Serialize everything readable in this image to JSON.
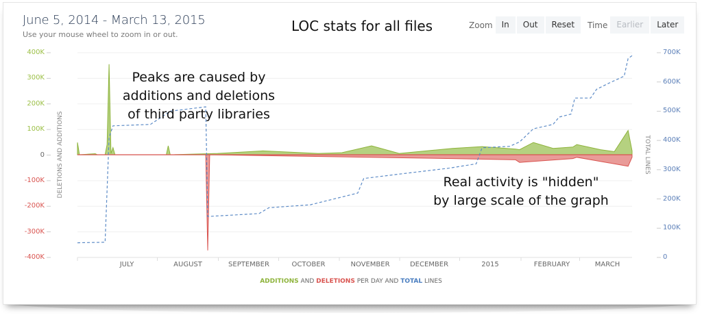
{
  "header": {
    "date_range": "June 5, 2014 - March 13, 2015",
    "hint": "Use your mouse wheel to zoom in or out.",
    "title": "LOC stats for all files"
  },
  "controls": {
    "zoom_label": "Zoom",
    "zoom_in": "In",
    "zoom_out": "Out",
    "zoom_reset": "Reset",
    "time_label": "Time",
    "time_earlier": "Earlier",
    "time_later": "Later"
  },
  "annotations": {
    "peaks_line1": "Peaks are caused by",
    "peaks_line2": "additions and deletions",
    "peaks_line3": "of third party libraries",
    "hidden_line1": "Real activity is \"hidden\"",
    "hidden_line2": "by large scale of the graph"
  },
  "legend": {
    "additions": "ADDITIONS",
    "and1": " AND ",
    "deletions": "DELETIONS",
    "per_day": " PER DAY AND ",
    "total": "TOTAL",
    "lines": " LINES"
  },
  "colors": {
    "additions": "#8db33a",
    "deletions": "#d9534f",
    "total": "#4a7ec0",
    "left_positive_ticks": "#9bbf45",
    "left_negative_ticks": "#d9534f",
    "right_ticks": "#5b7fb8"
  },
  "chart_data": {
    "type": "area",
    "title": "LOC stats for all files",
    "subtitle": "June 5, 2014 - March 13, 2015",
    "xlabel": "",
    "ylabel_left": "DELETIONS AND ADDITIONS",
    "ylabel_right": "TOTAL LINES",
    "x_ticks": [
      "JULY",
      "AUGUST",
      "SEPTEMBER",
      "OCTOBER",
      "NOVEMBER",
      "DECEMBER",
      "2015",
      "FEBRUARY",
      "MARCH"
    ],
    "y_left_ticks": [
      "400K",
      "300K",
      "200K",
      "100K",
      "0",
      "-100K",
      "-200K",
      "-300K",
      "-400K"
    ],
    "y_left_range": [
      -400000,
      400000
    ],
    "y_right_ticks": [
      "700K",
      "600K",
      "500K",
      "400K",
      "300K",
      "200K",
      "100K",
      "0"
    ],
    "y_right_range": [
      0,
      700000
    ],
    "grid": true,
    "legend_position": "bottom",
    "series": [
      {
        "name": "Additions",
        "axis": "left",
        "type": "area",
        "points": [
          {
            "date": "2014-06-05",
            "value": 48000
          },
          {
            "date": "2014-06-06",
            "value": 0
          },
          {
            "date": "2014-06-14",
            "value": 4000
          },
          {
            "date": "2014-06-15",
            "value": 0
          },
          {
            "date": "2014-06-19",
            "value": 0
          },
          {
            "date": "2014-06-20",
            "value": 40000
          },
          {
            "date": "2014-06-21",
            "value": 355000
          },
          {
            "date": "2014-06-22",
            "value": 5000
          },
          {
            "date": "2014-06-23",
            "value": 28000
          },
          {
            "date": "2014-06-24",
            "value": 0
          },
          {
            "date": "2014-07-20",
            "value": 0
          },
          {
            "date": "2014-07-21",
            "value": 35000
          },
          {
            "date": "2014-07-22",
            "value": 0
          },
          {
            "date": "2014-08-15",
            "value": 5000
          },
          {
            "date": "2014-09-07",
            "value": 15000
          },
          {
            "date": "2014-10-05",
            "value": 5000
          },
          {
            "date": "2014-10-17",
            "value": 8000
          },
          {
            "date": "2014-11-01",
            "value": 35000
          },
          {
            "date": "2014-11-15",
            "value": 5000
          },
          {
            "date": "2014-12-12",
            "value": 25000
          },
          {
            "date": "2014-12-27",
            "value": 32000
          },
          {
            "date": "2015-01-13",
            "value": 22000
          },
          {
            "date": "2015-01-15",
            "value": 20000
          },
          {
            "date": "2015-01-22",
            "value": 48000
          },
          {
            "date": "2015-02-01",
            "value": 25000
          },
          {
            "date": "2015-02-11",
            "value": 30000
          },
          {
            "date": "2015-02-13",
            "value": 40000
          },
          {
            "date": "2015-02-25",
            "value": 20000
          },
          {
            "date": "2015-03-04",
            "value": 12000
          },
          {
            "date": "2015-03-11",
            "value": 95000
          },
          {
            "date": "2015-03-13",
            "value": 15000
          }
        ]
      },
      {
        "name": "Deletions",
        "axis": "left",
        "type": "area",
        "points": [
          {
            "date": "2014-06-05",
            "value": 0
          },
          {
            "date": "2014-08-09",
            "value": 0
          },
          {
            "date": "2014-08-10",
            "value": -375000
          },
          {
            "date": "2014-08-11",
            "value": 0
          },
          {
            "date": "2014-12-12",
            "value": -15000
          },
          {
            "date": "2015-01-13",
            "value": -20000
          },
          {
            "date": "2015-01-15",
            "value": -30000
          },
          {
            "date": "2015-02-11",
            "value": -15000
          },
          {
            "date": "2015-02-13",
            "value": -10000
          },
          {
            "date": "2015-03-11",
            "value": -45000
          },
          {
            "date": "2015-03-13",
            "value": -10000
          }
        ]
      },
      {
        "name": "Total lines",
        "axis": "right",
        "type": "line",
        "style": "dashed",
        "points": [
          {
            "date": "2014-06-05",
            "value": 50000
          },
          {
            "date": "2014-06-19",
            "value": 52000
          },
          {
            "date": "2014-06-21",
            "value": 410000
          },
          {
            "date": "2014-06-23",
            "value": 450000
          },
          {
            "date": "2014-07-12",
            "value": 455000
          },
          {
            "date": "2014-07-22",
            "value": 500000
          },
          {
            "date": "2014-08-09",
            "value": 515000
          },
          {
            "date": "2014-08-10",
            "value": 140000
          },
          {
            "date": "2014-09-05",
            "value": 150000
          },
          {
            "date": "2014-09-10",
            "value": 170000
          },
          {
            "date": "2014-10-01",
            "value": 180000
          },
          {
            "date": "2014-10-10",
            "value": 195000
          },
          {
            "date": "2014-10-25",
            "value": 220000
          },
          {
            "date": "2014-10-28",
            "value": 270000
          },
          {
            "date": "2014-11-15",
            "value": 285000
          },
          {
            "date": "2014-12-10",
            "value": 305000
          },
          {
            "date": "2014-12-24",
            "value": 320000
          },
          {
            "date": "2014-12-27",
            "value": 375000
          },
          {
            "date": "2015-01-10",
            "value": 380000
          },
          {
            "date": "2015-01-15",
            "value": 395000
          },
          {
            "date": "2015-01-22",
            "value": 440000
          },
          {
            "date": "2015-02-01",
            "value": 455000
          },
          {
            "date": "2015-02-04",
            "value": 480000
          },
          {
            "date": "2015-02-10",
            "value": 490000
          },
          {
            "date": "2015-02-12",
            "value": 545000
          },
          {
            "date": "2015-02-20",
            "value": 545000
          },
          {
            "date": "2015-02-23",
            "value": 575000
          },
          {
            "date": "2015-03-01",
            "value": 595000
          },
          {
            "date": "2015-03-09",
            "value": 620000
          },
          {
            "date": "2015-03-11",
            "value": 680000
          },
          {
            "date": "2015-03-13",
            "value": 690000
          }
        ]
      }
    ]
  }
}
